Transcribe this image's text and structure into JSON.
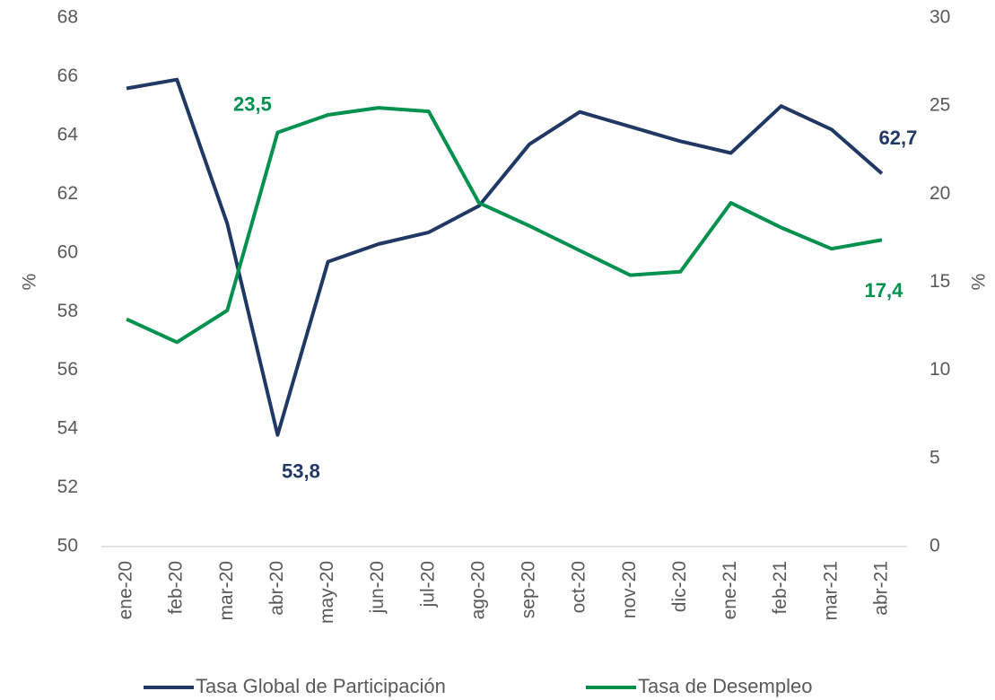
{
  "chart_data": {
    "type": "line",
    "categories": [
      "ene-20",
      "feb-20",
      "mar-20",
      "abr-20",
      "may-20",
      "jun-20",
      "jul-20",
      "ago-20",
      "sep-20",
      "oct-20",
      "nov-20",
      "dic-20",
      "ene-21",
      "feb-21",
      "mar-21",
      "abr-21"
    ],
    "series": [
      {
        "name": "Tasa Global de Participación",
        "color": "#203864",
        "axis": "y",
        "values": [
          65.6,
          65.9,
          61.0,
          53.8,
          59.7,
          60.3,
          60.7,
          61.6,
          63.7,
          64.8,
          64.3,
          63.8,
          63.4,
          65.0,
          64.2,
          62.7
        ],
        "value_labels": [
          null,
          null,
          null,
          "53,8",
          null,
          null,
          null,
          null,
          null,
          null,
          null,
          null,
          null,
          null,
          null,
          "62,7"
        ]
      },
      {
        "name": "Tasa de Desempleo",
        "color": "#00914f",
        "axis": "y2",
        "values": [
          12.9,
          11.6,
          13.4,
          23.5,
          24.5,
          24.9,
          24.7,
          19.5,
          18.2,
          16.8,
          15.4,
          15.6,
          19.5,
          18.1,
          16.9,
          17.4
        ],
        "value_labels": [
          null,
          null,
          null,
          "23,5",
          null,
          null,
          null,
          null,
          null,
          null,
          null,
          null,
          null,
          null,
          null,
          "17,4"
        ]
      }
    ],
    "ylabel": "%",
    "y2label": "%",
    "ylim": [
      50,
      68
    ],
    "yticks": [
      50,
      52,
      54,
      56,
      58,
      60,
      62,
      64,
      66,
      68
    ],
    "y2lim": [
      0,
      30
    ],
    "y2ticks": [
      0,
      5,
      10,
      15,
      20,
      25,
      30
    ],
    "grid": false,
    "legend": "bottom"
  }
}
